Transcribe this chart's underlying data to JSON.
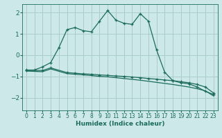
{
  "title": "",
  "xlabel": "Humidex (Indice chaleur)",
  "bg_color": "#cce8e8",
  "grid_color": "#aacccc",
  "line_color": "#1a6b5a",
  "xlim": [
    -0.5,
    23.5
  ],
  "ylim": [
    -2.6,
    2.4
  ],
  "xticks": [
    0,
    1,
    2,
    3,
    4,
    5,
    6,
    7,
    8,
    9,
    10,
    11,
    12,
    13,
    14,
    15,
    16,
    17,
    18,
    19,
    20,
    21,
    22,
    23
  ],
  "yticks": [
    -2,
    -1,
    0,
    1,
    2
  ],
  "series1_x": [
    0,
    1,
    2,
    3,
    4,
    5,
    6,
    7,
    8,
    9,
    10,
    11,
    12,
    13,
    14,
    15,
    16,
    17,
    18,
    19,
    20,
    21,
    22,
    23
  ],
  "series1_y": [
    -0.7,
    -0.7,
    -0.55,
    -0.35,
    0.35,
    1.2,
    1.3,
    1.15,
    1.1,
    1.6,
    2.1,
    1.65,
    1.5,
    1.45,
    1.95,
    1.6,
    0.25,
    -0.8,
    -1.2,
    -1.3,
    -1.35,
    -1.5,
    -1.7,
    -1.85
  ],
  "series2_x": [
    0,
    2,
    3,
    5,
    6,
    7,
    8,
    9,
    10,
    11,
    12,
    13,
    14,
    15,
    16,
    17,
    18,
    19,
    20,
    21,
    22,
    23
  ],
  "series2_y": [
    -0.72,
    -0.72,
    -0.6,
    -0.82,
    -0.85,
    -0.88,
    -0.9,
    -0.93,
    -0.95,
    -0.98,
    -1.0,
    -1.03,
    -1.06,
    -1.1,
    -1.13,
    -1.17,
    -1.2,
    -1.25,
    -1.3,
    -1.38,
    -1.5,
    -1.78
  ],
  "series3_x": [
    0,
    2,
    3,
    5,
    6,
    7,
    8,
    9,
    10,
    11,
    12,
    13,
    14,
    15,
    16,
    17,
    18,
    19,
    20,
    21,
    22,
    23
  ],
  "series3_y": [
    -0.75,
    -0.78,
    -0.65,
    -0.87,
    -0.9,
    -0.93,
    -0.96,
    -1.0,
    -1.02,
    -1.06,
    -1.1,
    -1.14,
    -1.18,
    -1.23,
    -1.28,
    -1.33,
    -1.38,
    -1.44,
    -1.5,
    -1.58,
    -1.68,
    -1.92
  ]
}
